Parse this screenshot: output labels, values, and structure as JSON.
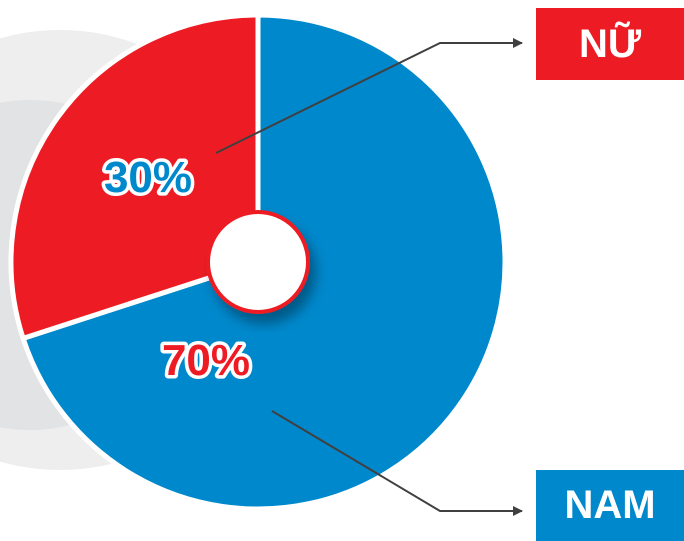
{
  "chart_data": {
    "type": "pie",
    "title": "",
    "slices": [
      {
        "label": "NỮ",
        "value": 30,
        "display": "30%",
        "color": "#ed1c24"
      },
      {
        "label": "NAM",
        "value": 70,
        "display": "70%",
        "color": "#0088cc"
      }
    ],
    "donut_hole": true,
    "legend_placement": "right"
  },
  "colors": {
    "female": "#ed1c24",
    "male": "#0088cc",
    "leader": "#404040",
    "decor_gray": "#e6e7e8"
  }
}
